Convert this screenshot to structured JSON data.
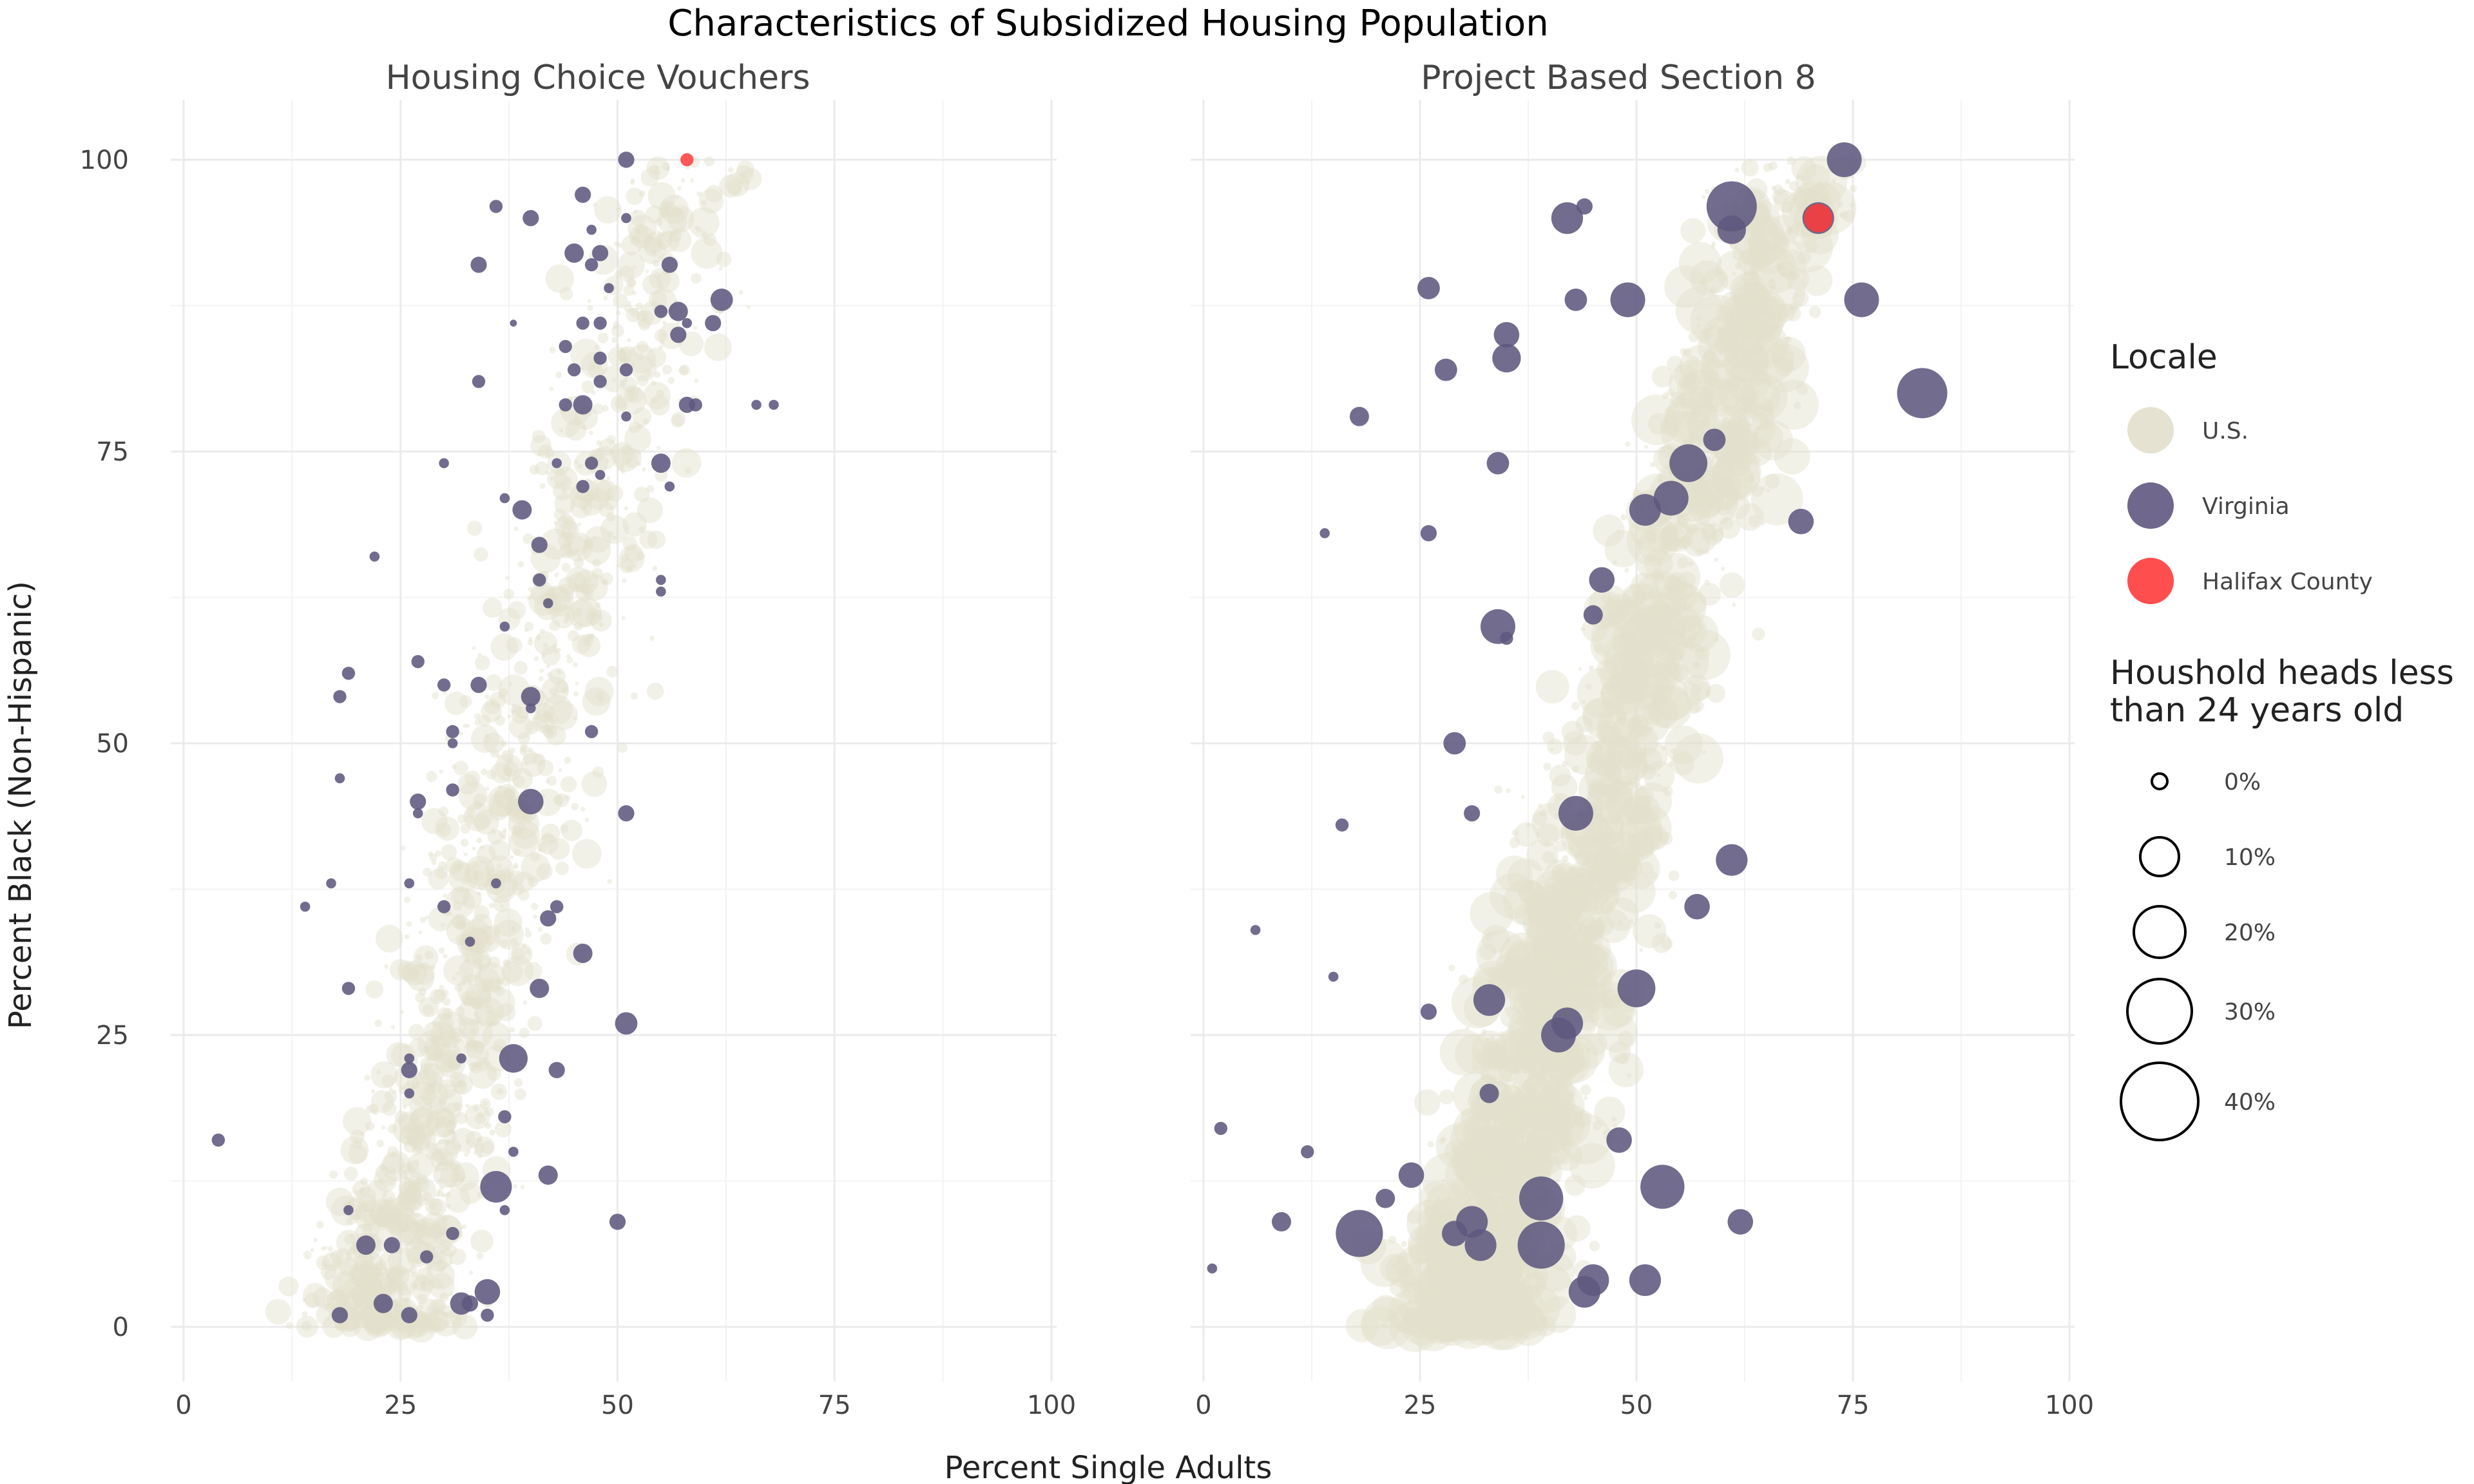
{
  "chart_data": {
    "type": "scatter",
    "title": "Characteristics of Subsidized Housing Population",
    "xlabel": "Percent Single Adults",
    "ylabel": "Percent Black (Non-Hispanic)",
    "xlim": [
      0,
      100
    ],
    "ylim": [
      0,
      100
    ],
    "x_ticks": [
      0,
      25,
      50,
      75,
      100
    ],
    "y_ticks": [
      0,
      25,
      50,
      75,
      100
    ],
    "grid": true,
    "legend_position": "right",
    "colors": {
      "us": "#e3dfcc",
      "virginia": "#5f5880",
      "halifax": "#ff3b3b"
    },
    "legend": {
      "color_title": "Locale",
      "color_entries": [
        {
          "key": "us",
          "label": "U.S."
        },
        {
          "key": "virginia",
          "label": "Virginia"
        },
        {
          "key": "halifax",
          "label": "Halifax County"
        }
      ],
      "size_title_line1": "Houshold heads less",
      "size_title_line2": "than 24 years old",
      "size_entries": [
        {
          "value": 0,
          "label": "0%"
        },
        {
          "value": 10,
          "label": "10%"
        },
        {
          "value": 20,
          "label": "20%"
        },
        {
          "value": 30,
          "label": "30%"
        },
        {
          "value": 40,
          "label": "40%"
        }
      ]
    },
    "panels": [
      {
        "title": "Housing Choice Vouchers",
        "virginia": [
          [
            51,
            100,
            4
          ],
          [
            46,
            97,
            4
          ],
          [
            36,
            96,
            3
          ],
          [
            40,
            95,
            4
          ],
          [
            51,
            95,
            2
          ],
          [
            47,
            94,
            2
          ],
          [
            45,
            92,
            5
          ],
          [
            48,
            92,
            4
          ],
          [
            34,
            91,
            4
          ],
          [
            47,
            91,
            3
          ],
          [
            56,
            91,
            4
          ],
          [
            49,
            89,
            2
          ],
          [
            62,
            88,
            6
          ],
          [
            57,
            87,
            5
          ],
          [
            55,
            87,
            3
          ],
          [
            57,
            85,
            4
          ],
          [
            58,
            86,
            2
          ],
          [
            61,
            86,
            4
          ],
          [
            48,
            86,
            3
          ],
          [
            46,
            86,
            3
          ],
          [
            38,
            86,
            1
          ],
          [
            44,
            84,
            3
          ],
          [
            48,
            83,
            3
          ],
          [
            45,
            82,
            3
          ],
          [
            51,
            82,
            3
          ],
          [
            34,
            81,
            3
          ],
          [
            48,
            81,
            3
          ],
          [
            58,
            79,
            4
          ],
          [
            59,
            79,
            3
          ],
          [
            46,
            79,
            5
          ],
          [
            44,
            79,
            3
          ],
          [
            66,
            79,
            2
          ],
          [
            68,
            79,
            2
          ],
          [
            51,
            78,
            2
          ],
          [
            55,
            74,
            5
          ],
          [
            47,
            74,
            3
          ],
          [
            48,
            73,
            2
          ],
          [
            43,
            74,
            2
          ],
          [
            30,
            74,
            2
          ],
          [
            37,
            71,
            2
          ],
          [
            39,
            70,
            5
          ],
          [
            46,
            72,
            3
          ],
          [
            56,
            72,
            2
          ],
          [
            41,
            67,
            4
          ],
          [
            22,
            66,
            2
          ],
          [
            55,
            64,
            2
          ],
          [
            41,
            64,
            3
          ],
          [
            55,
            63,
            2
          ],
          [
            42,
            62,
            2
          ],
          [
            37,
            60,
            2
          ],
          [
            27,
            57,
            3
          ],
          [
            19,
            56,
            3
          ],
          [
            18,
            54,
            3
          ],
          [
            34,
            55,
            4
          ],
          [
            30,
            55,
            3
          ],
          [
            40,
            54,
            5
          ],
          [
            40,
            53,
            2
          ],
          [
            31,
            51,
            3
          ],
          [
            31,
            50,
            2
          ],
          [
            47,
            51,
            3
          ],
          [
            18,
            47,
            2
          ],
          [
            27,
            45,
            4
          ],
          [
            31,
            46,
            3
          ],
          [
            27,
            44,
            2
          ],
          [
            40,
            45,
            7
          ],
          [
            51,
            44,
            4
          ],
          [
            17,
            38,
            2
          ],
          [
            26,
            38,
            2
          ],
          [
            36,
            38,
            2
          ],
          [
            14,
            36,
            2
          ],
          [
            30,
            36,
            3
          ],
          [
            43,
            36,
            3
          ],
          [
            42,
            35,
            4
          ],
          [
            33,
            33,
            2
          ],
          [
            46,
            32,
            5
          ],
          [
            19,
            29,
            3
          ],
          [
            41,
            29,
            5
          ],
          [
            51,
            26,
            6
          ],
          [
            38,
            23,
            8
          ],
          [
            26,
            23,
            2
          ],
          [
            26,
            22,
            4
          ],
          [
            32,
            23,
            2
          ],
          [
            43,
            22,
            4
          ],
          [
            26,
            20,
            2
          ],
          [
            37,
            18,
            3
          ],
          [
            38,
            15,
            2
          ],
          [
            4,
            16,
            3
          ],
          [
            36,
            12,
            9
          ],
          [
            42,
            13,
            5
          ],
          [
            37,
            10,
            2
          ],
          [
            19,
            10,
            2
          ],
          [
            50,
            9,
            4
          ],
          [
            31,
            8,
            3
          ],
          [
            21,
            7,
            5
          ],
          [
            24,
            7,
            4
          ],
          [
            28,
            6,
            3
          ],
          [
            35,
            3,
            7
          ],
          [
            32,
            2,
            6
          ],
          [
            23,
            2,
            5
          ],
          [
            26,
            1,
            4
          ],
          [
            18,
            1,
            4
          ],
          [
            35,
            1,
            3
          ],
          [
            33,
            2,
            4
          ]
        ],
        "halifax": [
          [
            58,
            100,
            3
          ]
        ]
      },
      {
        "title": "Project Based Section 8",
        "virginia": [
          [
            74,
            100,
            10
          ],
          [
            61,
            96,
            15
          ],
          [
            61,
            94,
            8
          ],
          [
            71,
            95,
            9
          ],
          [
            44,
            96,
            4
          ],
          [
            42,
            95,
            9
          ],
          [
            26,
            89,
            6
          ],
          [
            43,
            88,
            6
          ],
          [
            49,
            88,
            10
          ],
          [
            76,
            88,
            10
          ],
          [
            83,
            80,
            15
          ],
          [
            35,
            85,
            7
          ],
          [
            35,
            83,
            8
          ],
          [
            28,
            82,
            6
          ],
          [
            18,
            78,
            5
          ],
          [
            59,
            76,
            6
          ],
          [
            56,
            74,
            11
          ],
          [
            54,
            71,
            10
          ],
          [
            51,
            70,
            9
          ],
          [
            69,
            69,
            7
          ],
          [
            34,
            74,
            6
          ],
          [
            26,
            68,
            4
          ],
          [
            14,
            68,
            2
          ],
          [
            34,
            60,
            10
          ],
          [
            35,
            59,
            3
          ],
          [
            45,
            61,
            5
          ],
          [
            46,
            64,
            7
          ],
          [
            29,
            50,
            6
          ],
          [
            31,
            44,
            4
          ],
          [
            43,
            44,
            10
          ],
          [
            16,
            43,
            3
          ],
          [
            61,
            40,
            9
          ],
          [
            57,
            36,
            7
          ],
          [
            6,
            34,
            2
          ],
          [
            15,
            30,
            2
          ],
          [
            50,
            29,
            11
          ],
          [
            42,
            26,
            9
          ],
          [
            41,
            25,
            10
          ],
          [
            33,
            28,
            9
          ],
          [
            26,
            27,
            4
          ],
          [
            33,
            20,
            5
          ],
          [
            2,
            17,
            3
          ],
          [
            12,
            15,
            3
          ],
          [
            48,
            16,
            7
          ],
          [
            53,
            12,
            13
          ],
          [
            24,
            13,
            7
          ],
          [
            21,
            11,
            5
          ],
          [
            62,
            9,
            7
          ],
          [
            9,
            9,
            5
          ],
          [
            18,
            8,
            14
          ],
          [
            29,
            8,
            7
          ],
          [
            31,
            9,
            9
          ],
          [
            32,
            7,
            9
          ],
          [
            39,
            11,
            13
          ],
          [
            39,
            7,
            14
          ],
          [
            44,
            3,
            9
          ],
          [
            45,
            4,
            9
          ],
          [
            51,
            4,
            9
          ],
          [
            1,
            5,
            2
          ]
        ],
        "halifax": [
          [
            71,
            95,
            8
          ]
        ]
      }
    ]
  }
}
